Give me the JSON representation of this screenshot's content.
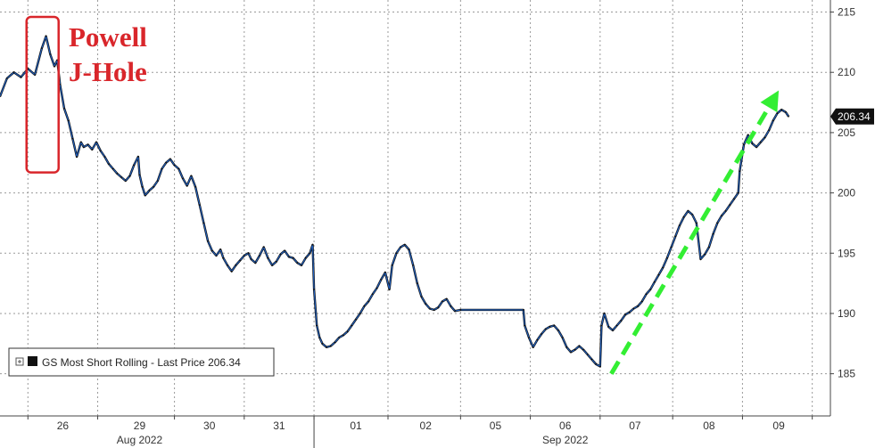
{
  "chart_data": {
    "type": "line",
    "series": [
      {
        "name": "GS Most Short Rolling - Last Price",
        "color": "#1f5fbf",
        "points": [
          [
            0,
            208.0
          ],
          [
            0.5,
            209.5
          ],
          [
            1.0,
            210.0
          ],
          [
            1.5,
            209.6
          ],
          [
            2.0,
            210.3
          ],
          [
            2.5,
            209.8
          ],
          [
            3.0,
            212.0
          ],
          [
            3.3,
            213.0
          ],
          [
            3.6,
            211.5
          ],
          [
            3.9,
            210.5
          ],
          [
            4.1,
            211.0
          ],
          [
            4.3,
            209.0
          ],
          [
            4.6,
            207.0
          ],
          [
            4.9,
            206.0
          ],
          [
            5.2,
            204.5
          ],
          [
            5.5,
            203.0
          ],
          [
            5.8,
            204.2
          ],
          [
            6.0,
            203.8
          ],
          [
            6.3,
            204.0
          ],
          [
            6.6,
            203.6
          ],
          [
            6.9,
            204.2
          ],
          [
            7.2,
            203.5
          ],
          [
            7.5,
            203.0
          ],
          [
            7.8,
            202.4
          ],
          [
            8.1,
            202.0
          ],
          [
            8.4,
            201.6
          ],
          [
            8.7,
            201.3
          ],
          [
            9.0,
            201.0
          ],
          [
            9.3,
            201.4
          ],
          [
            9.6,
            202.3
          ],
          [
            9.9,
            203.0
          ],
          [
            10.0,
            201.5
          ],
          [
            10.2,
            200.5
          ],
          [
            10.4,
            199.8
          ],
          [
            10.7,
            200.2
          ],
          [
            11.0,
            200.5
          ],
          [
            11.3,
            201.0
          ],
          [
            11.6,
            202.0
          ],
          [
            11.9,
            202.5
          ],
          [
            12.2,
            202.8
          ],
          [
            12.5,
            202.3
          ],
          [
            12.8,
            202.0
          ],
          [
            13.1,
            201.2
          ],
          [
            13.4,
            200.6
          ],
          [
            13.7,
            201.4
          ],
          [
            14.0,
            200.5
          ],
          [
            14.3,
            199.0
          ],
          [
            14.6,
            197.5
          ],
          [
            14.9,
            196.0
          ],
          [
            15.2,
            195.2
          ],
          [
            15.5,
            194.8
          ],
          [
            15.8,
            195.3
          ],
          [
            16.0,
            194.6
          ],
          [
            16.3,
            194.0
          ],
          [
            16.6,
            193.5
          ],
          [
            16.9,
            194.0
          ],
          [
            17.2,
            194.4
          ],
          [
            17.5,
            194.8
          ],
          [
            17.8,
            195.0
          ],
          [
            18.0,
            194.5
          ],
          [
            18.3,
            194.2
          ],
          [
            18.6,
            194.8
          ],
          [
            18.9,
            195.5
          ],
          [
            19.2,
            194.6
          ],
          [
            19.5,
            194.0
          ],
          [
            19.8,
            194.3
          ],
          [
            20.1,
            194.9
          ],
          [
            20.4,
            195.2
          ],
          [
            20.7,
            194.7
          ],
          [
            21.0,
            194.6
          ],
          [
            21.3,
            194.2
          ],
          [
            21.6,
            194.0
          ],
          [
            21.9,
            194.6
          ],
          [
            22.2,
            195.0
          ],
          [
            22.4,
            195.7
          ],
          [
            22.5,
            192.0
          ],
          [
            22.7,
            189.0
          ],
          [
            22.9,
            188.0
          ],
          [
            23.1,
            187.5
          ],
          [
            23.4,
            187.2
          ],
          [
            23.7,
            187.3
          ],
          [
            24.0,
            187.6
          ],
          [
            24.3,
            188.0
          ],
          [
            24.6,
            188.2
          ],
          [
            24.9,
            188.5
          ],
          [
            25.2,
            189.0
          ],
          [
            25.5,
            189.5
          ],
          [
            25.8,
            190.0
          ],
          [
            26.1,
            190.6
          ],
          [
            26.4,
            191.0
          ],
          [
            26.7,
            191.6
          ],
          [
            27.0,
            192.1
          ],
          [
            27.3,
            192.8
          ],
          [
            27.6,
            193.4
          ],
          [
            27.9,
            192.0
          ],
          [
            28.1,
            194.0
          ],
          [
            28.4,
            195.0
          ],
          [
            28.7,
            195.5
          ],
          [
            29.0,
            195.7
          ],
          [
            29.3,
            195.3
          ],
          [
            29.6,
            194.0
          ],
          [
            29.9,
            192.5
          ],
          [
            30.2,
            191.4
          ],
          [
            30.5,
            190.8
          ],
          [
            30.8,
            190.4
          ],
          [
            31.1,
            190.3
          ],
          [
            31.4,
            190.5
          ],
          [
            31.7,
            191.0
          ],
          [
            32.0,
            191.2
          ],
          [
            32.3,
            190.6
          ],
          [
            32.6,
            190.2
          ],
          [
            33.0,
            190.3
          ],
          [
            37.5,
            190.3
          ],
          [
            37.6,
            189.0
          ],
          [
            37.9,
            188.0
          ],
          [
            38.2,
            187.2
          ],
          [
            38.5,
            187.8
          ],
          [
            38.8,
            188.3
          ],
          [
            39.1,
            188.7
          ],
          [
            39.4,
            188.9
          ],
          [
            39.7,
            189.0
          ],
          [
            40.0,
            188.6
          ],
          [
            40.3,
            188.0
          ],
          [
            40.6,
            187.2
          ],
          [
            40.9,
            186.8
          ],
          [
            41.2,
            187.0
          ],
          [
            41.5,
            187.3
          ],
          [
            41.8,
            187.0
          ],
          [
            42.1,
            186.6
          ],
          [
            42.4,
            186.2
          ],
          [
            42.7,
            185.8
          ],
          [
            43.0,
            185.6
          ],
          [
            43.1,
            189.0
          ],
          [
            43.3,
            190.0
          ],
          [
            43.6,
            188.9
          ],
          [
            43.9,
            188.6
          ],
          [
            44.2,
            189.0
          ],
          [
            44.5,
            189.4
          ],
          [
            44.8,
            189.9
          ],
          [
            45.1,
            190.1
          ],
          [
            45.4,
            190.4
          ],
          [
            45.7,
            190.6
          ],
          [
            46.0,
            191.0
          ],
          [
            46.3,
            191.6
          ],
          [
            46.6,
            192.0
          ],
          [
            46.9,
            192.6
          ],
          [
            47.2,
            193.2
          ],
          [
            47.5,
            193.8
          ],
          [
            47.8,
            194.6
          ],
          [
            48.1,
            195.5
          ],
          [
            48.4,
            196.4
          ],
          [
            48.7,
            197.3
          ],
          [
            49.0,
            198.0
          ],
          [
            49.3,
            198.5
          ],
          [
            49.6,
            198.2
          ],
          [
            49.9,
            197.5
          ],
          [
            50.2,
            194.5
          ],
          [
            50.5,
            194.9
          ],
          [
            50.8,
            195.5
          ],
          [
            51.1,
            196.6
          ],
          [
            51.4,
            197.5
          ],
          [
            51.7,
            198.1
          ],
          [
            52.0,
            198.5
          ],
          [
            52.3,
            199.0
          ],
          [
            52.6,
            199.5
          ],
          [
            52.9,
            200.0
          ],
          [
            53.0,
            201.8
          ],
          [
            53.3,
            204.0
          ],
          [
            53.6,
            204.8
          ],
          [
            53.9,
            204.1
          ],
          [
            54.2,
            203.8
          ],
          [
            54.5,
            204.2
          ],
          [
            54.8,
            204.6
          ],
          [
            55.1,
            205.2
          ],
          [
            55.4,
            206.0
          ],
          [
            55.7,
            206.6
          ],
          [
            56.0,
            206.9
          ],
          [
            56.3,
            206.7
          ],
          [
            56.5,
            206.34
          ]
        ]
      }
    ],
    "x_ticks": [
      {
        "x": 4.5,
        "label": "26"
      },
      {
        "x": 10.0,
        "label": "29"
      },
      {
        "x": 15.0,
        "label": "30"
      },
      {
        "x": 20.0,
        "label": "31"
      },
      {
        "x": 25.5,
        "label": "01"
      },
      {
        "x": 30.5,
        "label": "02"
      },
      {
        "x": 35.5,
        "label": "05"
      },
      {
        "x": 40.5,
        "label": "06"
      },
      {
        "x": 45.5,
        "label": "07"
      },
      {
        "x": 50.8,
        "label": "08"
      },
      {
        "x": 55.8,
        "label": "09"
      }
    ],
    "x_separators": [
      2.0,
      7.0,
      12.5,
      17.5,
      22.5,
      27.8,
      33.0,
      38.0,
      43.0,
      48.2,
      53.2,
      58.2
    ],
    "month_labels": [
      {
        "x": 10.0,
        "label": "Aug 2022"
      },
      {
        "x": 40.5,
        "label": "Sep 2022"
      }
    ],
    "y_ticks": [
      215,
      210,
      205,
      200,
      195,
      190,
      185
    ],
    "ylim": [
      181.5,
      216
    ],
    "xlim": [
      0,
      59.5
    ],
    "month_divider_x": 22.5,
    "last_value": 206.34,
    "last_value_label": "206.34",
    "legend": {
      "text": "GS Most Short Rolling - Last Price 206.34"
    },
    "annotations": {
      "title_line1": "Powell",
      "title_line2": "J-Hole",
      "highlight_color": "#d9262b",
      "highlight_range": {
        "x0": 1.9,
        "x1": 4.2,
        "y0": 201.7,
        "y1": 214.6
      },
      "trend_arrow": {
        "x0": 43.8,
        "y0": 185.0,
        "x1": 55.8,
        "y1": 208.5,
        "color": "#33ee33"
      }
    }
  }
}
